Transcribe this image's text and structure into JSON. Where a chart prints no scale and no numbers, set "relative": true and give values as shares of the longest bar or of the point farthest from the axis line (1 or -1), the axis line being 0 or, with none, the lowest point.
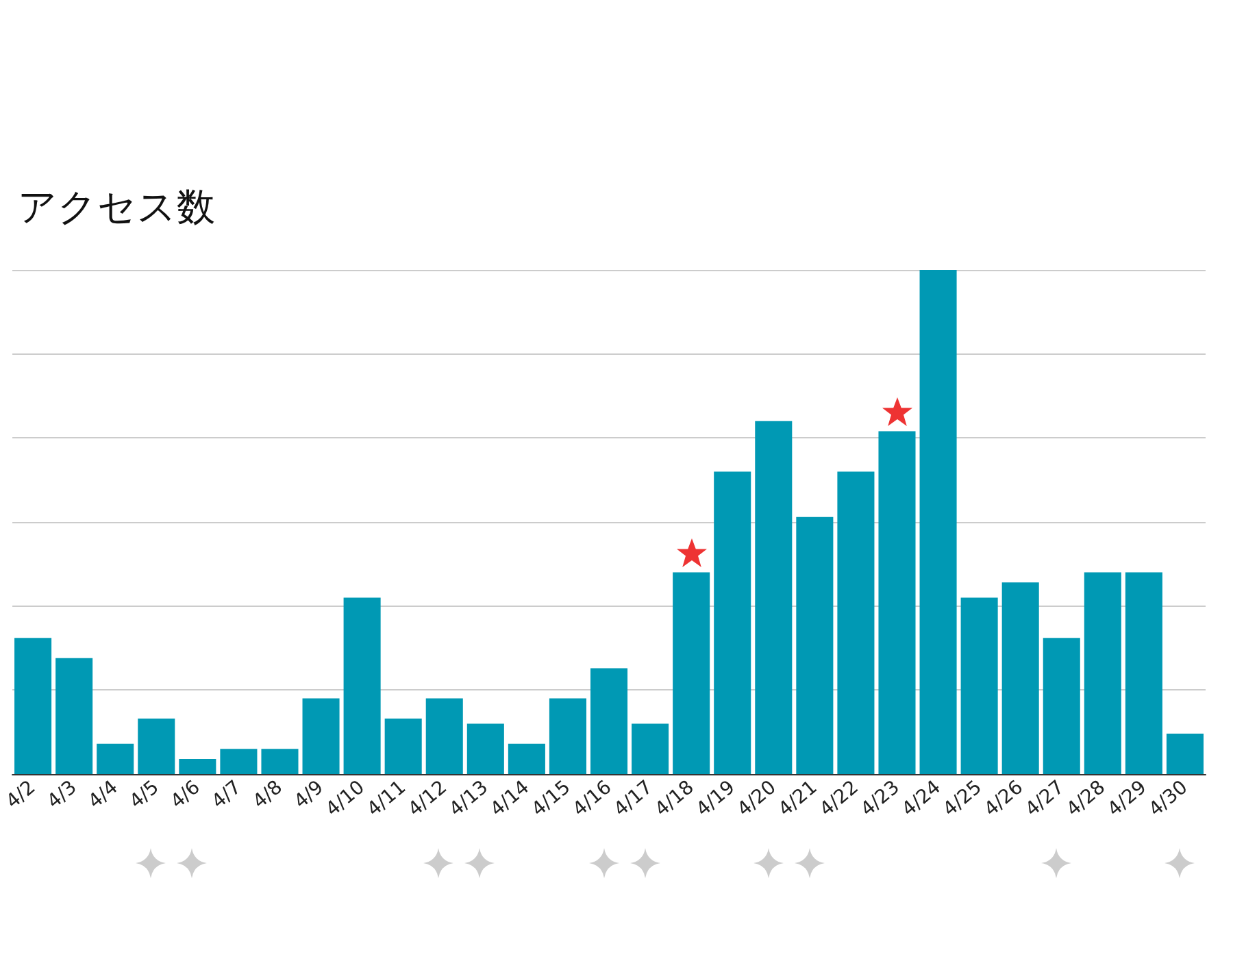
{
  "chart_data": {
    "type": "bar",
    "title": "アクセス数",
    "relative": true,
    "grid": "y",
    "color": "#0099b4",
    "categories": [
      "4/2",
      "4/3",
      "4/4",
      "4/5",
      "4/6",
      "4/7",
      "4/8",
      "4/9",
      "4/10",
      "4/11",
      "4/12",
      "4/13",
      "4/14",
      "4/15",
      "4/16",
      "4/17",
      "4/18",
      "4/19",
      "4/20",
      "4/21",
      "4/22",
      "4/23",
      "4/24",
      "4/25",
      "4/26",
      "4/27",
      "4/28",
      "4/29",
      "4/30"
    ],
    "values": [
      0.27,
      0.23,
      0.06,
      0.11,
      0.03,
      0.05,
      0.05,
      0.15,
      0.35,
      0.11,
      0.15,
      0.1,
      0.06,
      0.15,
      0.21,
      0.1,
      0.4,
      0.6,
      0.7,
      0.51,
      0.6,
      0.68,
      1,
      0.35,
      0.38,
      0.27,
      0.4,
      0.4,
      0.08
    ]
  }
}
